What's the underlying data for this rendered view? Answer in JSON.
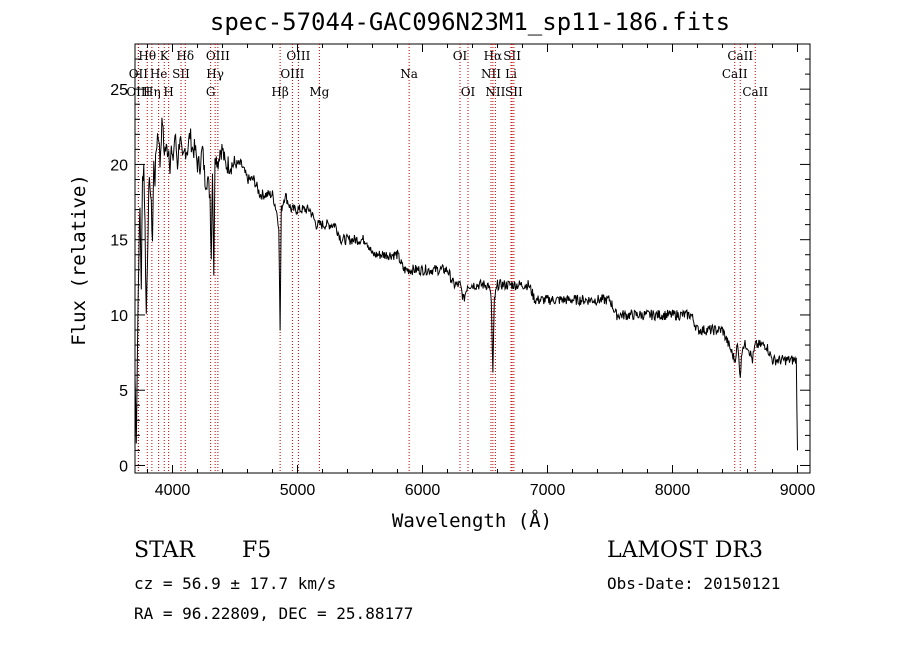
{
  "chart_data": {
    "type": "line",
    "title": "spec-57044-GAC096N23M1_sp11-186.fits",
    "xlabel": "Wavelength (Å)",
    "ylabel": "Flux (relative)",
    "xlim": [
      3700,
      9100
    ],
    "ylim": [
      -0.5,
      28
    ],
    "xticks": [
      4000,
      5000,
      6000,
      7000,
      8000,
      9000
    ],
    "yticks": [
      0,
      5,
      10,
      15,
      20,
      25
    ],
    "series": [
      {
        "name": "flux",
        "x": [
          3700,
          3710,
          3720,
          3730,
          3740,
          3750,
          3760,
          3770,
          3780,
          3790,
          3800,
          3810,
          3820,
          3830,
          3840,
          3850,
          3860,
          3870,
          3880,
          3890,
          3900,
          3910,
          3920,
          3930,
          3940,
          3950,
          3960,
          3970,
          3980,
          3990,
          4000,
          4020,
          4040,
          4060,
          4080,
          4100,
          4120,
          4140,
          4160,
          4180,
          4200,
          4220,
          4240,
          4260,
          4280,
          4300,
          4310,
          4320,
          4330,
          4340,
          4350,
          4360,
          4380,
          4400,
          4420,
          4440,
          4460,
          4480,
          4500,
          4550,
          4600,
          4650,
          4700,
          4750,
          4800,
          4830,
          4850,
          4861,
          4870,
          4900,
          4950,
          5000,
          5050,
          5100,
          5150,
          5200,
          5250,
          5300,
          5350,
          5400,
          5450,
          5500,
          5550,
          5600,
          5650,
          5700,
          5750,
          5800,
          5850,
          5893,
          5950,
          6000,
          6050,
          6100,
          6150,
          6200,
          6250,
          6300,
          6330,
          6360,
          6400,
          6450,
          6500,
          6530,
          6550,
          6563,
          6575,
          6600,
          6650,
          6700,
          6750,
          6800,
          6850,
          6900,
          6950,
          7000,
          7050,
          7100,
          7150,
          7200,
          7250,
          7300,
          7350,
          7400,
          7450,
          7500,
          7550,
          7600,
          7650,
          7700,
          7750,
          7800,
          7850,
          7900,
          7950,
          8000,
          8050,
          8100,
          8150,
          8200,
          8250,
          8300,
          8350,
          8400,
          8450,
          8498,
          8520,
          8542,
          8560,
          8600,
          8640,
          8662,
          8700,
          8750,
          8800,
          8850,
          8900,
          8950,
          8990,
          9000
        ],
        "y": [
          6,
          2,
          8,
          14,
          17,
          12,
          19,
          20,
          16,
          10,
          14,
          18,
          19,
          17,
          15,
          20,
          19,
          21,
          22,
          22,
          20,
          22,
          23,
          21,
          21,
          21,
          21,
          21,
          20,
          21,
          20,
          22,
          20,
          22,
          20,
          21,
          21,
          22,
          21,
          21,
          20,
          20,
          21,
          19,
          19,
          18,
          14,
          20,
          13,
          20,
          21,
          20,
          21,
          21,
          20,
          20,
          20,
          20,
          20,
          20,
          19,
          19,
          18,
          18,
          18,
          17,
          16,
          9,
          17,
          18,
          17,
          17,
          17,
          17,
          16,
          16,
          16,
          16,
          15,
          15,
          15,
          15,
          15,
          14,
          14,
          14,
          14,
          14,
          13,
          13,
          13,
          13,
          13,
          13,
          13,
          13,
          12,
          12,
          11,
          12,
          12,
          12,
          12,
          12,
          11,
          6,
          11,
          12,
          12,
          12,
          12,
          12,
          12,
          11,
          11,
          11,
          11,
          11,
          11,
          11,
          11,
          11,
          11,
          11,
          11,
          11,
          10,
          10,
          10,
          10,
          10,
          10,
          10,
          10,
          10,
          10,
          10,
          10,
          10,
          9,
          9,
          9,
          9,
          9,
          8,
          7,
          8,
          6,
          8,
          8,
          7,
          8,
          8,
          8,
          7,
          7,
          7,
          7,
          7,
          1
        ]
      }
    ],
    "lines": [
      {
        "label": "Hθ",
        "x": 3798,
        "row": 0
      },
      {
        "label": "OII",
        "x": 3727,
        "row": 1
      },
      {
        "label": "OIII",
        "x": 3727,
        "row": 2
      },
      {
        "label": "Hη",
        "x": 3835,
        "row": 2
      },
      {
        "label": "He",
        "x": 3889,
        "row": 1
      },
      {
        "label": "K",
        "x": 3934,
        "row": 0
      },
      {
        "label": "H",
        "x": 3969,
        "row": 2
      },
      {
        "label": "SII",
        "x": 4068,
        "row": 1
      },
      {
        "label": "Hδ",
        "x": 4102,
        "row": 0
      },
      {
        "label": "OIII",
        "x": 4363,
        "row": 0
      },
      {
        "label": "Hγ",
        "x": 4341,
        "row": 1
      },
      {
        "label": "G",
        "x": 4305,
        "row": 2
      },
      {
        "label": "Hβ",
        "x": 4861,
        "row": 2
      },
      {
        "label": "OIII",
        "x": 5007,
        "row": 0
      },
      {
        "label": "OIII",
        "x": 4959,
        "row": 1
      },
      {
        "label": "Mg",
        "x": 5175,
        "row": 2
      },
      {
        "label": "Na",
        "x": 5893,
        "row": 1
      },
      {
        "label": "OI",
        "x": 6300,
        "row": 0
      },
      {
        "label": "OI",
        "x": 6364,
        "row": 2
      },
      {
        "label": "Hα",
        "x": 6563,
        "row": 0
      },
      {
        "label": "NII",
        "x": 6548,
        "row": 1
      },
      {
        "label": "NII",
        "x": 6583,
        "row": 2
      },
      {
        "label": "SII",
        "x": 6717,
        "row": 0
      },
      {
        "label": "Li",
        "x": 6708,
        "row": 1
      },
      {
        "label": "SII",
        "x": 6731,
        "row": 2
      },
      {
        "label": "CaII",
        "x": 8542,
        "row": 0
      },
      {
        "label": "CaII",
        "x": 8498,
        "row": 1
      },
      {
        "label": "CaII",
        "x": 8662,
        "row": 2
      }
    ]
  },
  "info": {
    "object_class": "STAR",
    "subclass": "F5",
    "survey": "LAMOST DR3",
    "redshift": "cz = 56.9 ± 17.7 km/s",
    "obs_date": "Obs-Date: 20150121",
    "coords": "RA =  96.22809, DEC =  25.88177"
  }
}
